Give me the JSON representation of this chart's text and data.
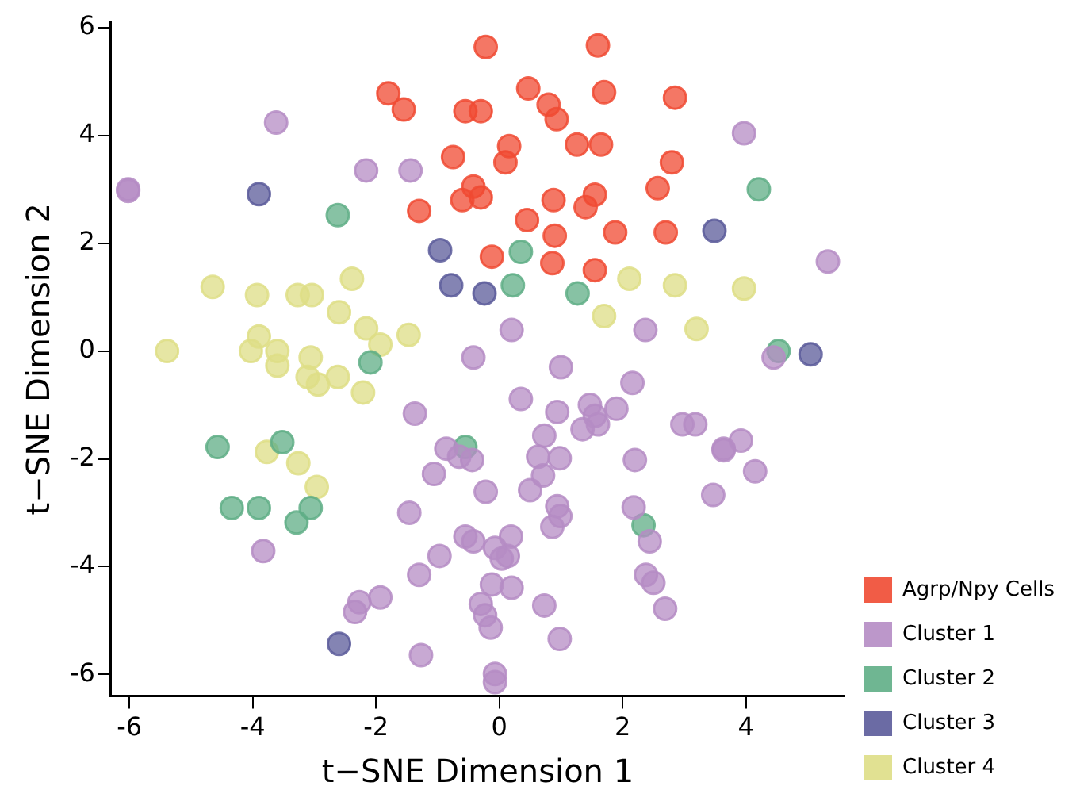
{
  "chart_data": {
    "type": "scatter",
    "xlabel": "t−SNE Dimension 1",
    "ylabel": "t−SNE Dimension 2",
    "xlim": [
      -6.3,
      5.6
    ],
    "ylim": [
      -6.4,
      6.1
    ],
    "xticks": [
      -6,
      -4,
      -2,
      0,
      2,
      4
    ],
    "yticks": [
      -6,
      -4,
      -2,
      0,
      2,
      4,
      6
    ],
    "grid": false,
    "legend": "bottom right",
    "marker": "circle",
    "series": [
      {
        "name": "Agrp/Npy Cells",
        "color": "#f04a32",
        "x": [
          -0.22,
          -1.8,
          -1.55,
          -0.55,
          -0.3,
          0.47,
          1.6,
          1.7,
          2.85,
          0.8,
          0.93,
          -0.75,
          0.16,
          0.1,
          1.26,
          1.65,
          2.8,
          -1.3,
          -0.42,
          -0.3,
          -0.6,
          0.88,
          1.4,
          1.55,
          2.57,
          2.7,
          1.88,
          0.9,
          0.86,
          1.55,
          -0.12,
          0.45
        ],
        "values": [
          5.64,
          4.78,
          4.48,
          4.45,
          4.45,
          4.87,
          5.67,
          4.8,
          4.7,
          4.57,
          4.3,
          3.6,
          3.8,
          3.5,
          3.83,
          3.83,
          3.5,
          2.6,
          3.05,
          2.85,
          2.8,
          2.8,
          2.67,
          2.9,
          3.02,
          2.2,
          2.2,
          2.14,
          1.63,
          1.5,
          1.75,
          2.43
        ]
      },
      {
        "name": "Cluster 1",
        "color": "#b58cc4",
        "x": [
          -3.62,
          -2.16,
          -1.44,
          -6.02,
          -6.02,
          3.97,
          5.33,
          0.2,
          -0.42,
          -1.37,
          1.0,
          0.35,
          2.16,
          2.37,
          4.45,
          -0.86,
          -0.65,
          -0.44,
          -1.06,
          -1.46,
          0.94,
          0.73,
          0.63,
          1.47,
          1.6,
          1.55,
          1.35,
          1.9,
          0.98,
          0.5,
          -0.22,
          0.71,
          2.2,
          2.97,
          3.18,
          3.64,
          3.64,
          3.92,
          4.15,
          3.47,
          2.18,
          2.44,
          2.38,
          2.5,
          2.69,
          0.94,
          0.99,
          0.86,
          0.19,
          -0.07,
          0.14,
          0.04,
          -0.55,
          -0.42,
          -0.97,
          -1.3,
          -0.12,
          0.2,
          -0.3,
          -0.23,
          0.73,
          -1.93,
          -2.27,
          -2.34,
          -1.27,
          -0.14,
          -0.07,
          -0.07,
          0.98,
          -3.83
        ],
        "values": [
          4.24,
          3.35,
          3.35,
          2.97,
          3.0,
          4.04,
          1.66,
          0.39,
          -0.12,
          -1.16,
          -0.3,
          -0.89,
          -0.59,
          0.39,
          -0.12,
          -1.81,
          -1.96,
          -2.02,
          -2.28,
          -3.0,
          -1.13,
          -1.57,
          -1.96,
          -1.0,
          -1.36,
          -1.2,
          -1.45,
          -1.07,
          -1.99,
          -2.58,
          -2.61,
          -2.31,
          -2.02,
          -1.36,
          -1.36,
          -1.81,
          -1.84,
          -1.66,
          -2.23,
          -2.67,
          -2.9,
          -3.53,
          -4.15,
          -4.3,
          -4.78,
          -2.88,
          -3.06,
          -3.26,
          -3.44,
          -3.65,
          -3.8,
          -3.85,
          -3.44,
          -3.53,
          -3.8,
          -4.15,
          -4.33,
          -4.39,
          -4.69,
          -4.9,
          -4.72,
          -4.57,
          -4.66,
          -4.84,
          -5.64,
          -5.13,
          -5.99,
          -6.14,
          -5.34,
          -3.71
        ]
      },
      {
        "name": "Cluster 2",
        "color": "#5fae86",
        "x": [
          -2.62,
          4.21,
          0.35,
          1.27,
          0.22,
          -2.09,
          4.53,
          -4.57,
          -3.52,
          -4.34,
          -3.9,
          -3.06,
          -3.29,
          -0.55,
          2.34
        ],
        "values": [
          2.52,
          3.0,
          1.84,
          1.07,
          1.22,
          -0.21,
          0.0,
          -1.78,
          -1.69,
          -2.91,
          -2.91,
          -2.91,
          -3.18,
          -1.78,
          -3.23
        ]
      },
      {
        "name": "Cluster 3",
        "color": "#5b5b9a",
        "x": [
          -3.9,
          -0.96,
          -0.78,
          -0.24,
          3.49,
          5.05,
          -2.6
        ],
        "values": [
          2.91,
          1.87,
          1.22,
          1.07,
          2.23,
          -0.06,
          -5.43
        ]
      },
      {
        "name": "Cluster 4",
        "color": "#dede86",
        "x": [
          -4.65,
          -5.39,
          -3.93,
          -3.27,
          -3.04,
          -2.6,
          -2.39,
          -2.16,
          -1.93,
          -1.47,
          -4.03,
          -3.9,
          -3.6,
          -3.6,
          -3.06,
          -3.11,
          -2.94,
          -2.62,
          -2.21,
          -3.77,
          -3.26,
          -2.96,
          1.7,
          2.11,
          2.85,
          3.2,
          3.97
        ],
        "values": [
          1.19,
          0.0,
          1.04,
          1.04,
          1.04,
          0.72,
          1.34,
          0.42,
          0.12,
          0.3,
          0.0,
          0.27,
          0.0,
          -0.27,
          -0.12,
          -0.48,
          -0.62,
          -0.48,
          -0.77,
          -1.87,
          -2.08,
          -2.52,
          0.65,
          1.34,
          1.22,
          0.41,
          1.16
        ]
      }
    ]
  }
}
